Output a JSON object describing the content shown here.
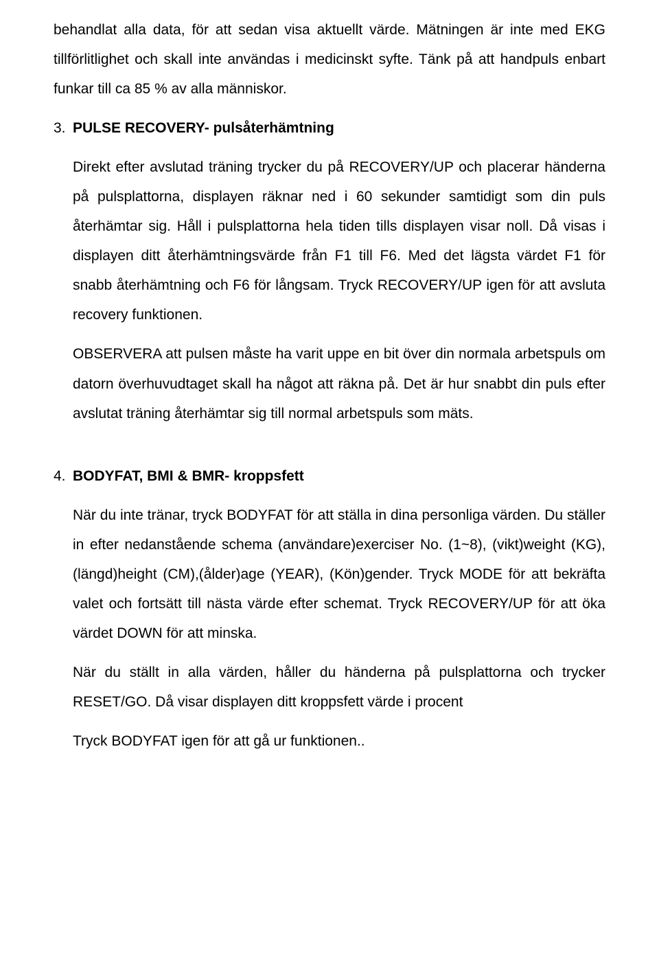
{
  "para_top": "behandlat alla data, för att sedan visa aktuellt värde. Mätningen är inte med EKG tillförlitlighet och skall inte användas i medicinskt syfte. Tänk på att handpuls enbart funkar till ca 85 % av alla människor.",
  "sec3_num": "3.",
  "sec3_title": "PULSE RECOVERY- pulsåterhämtning",
  "sec3_p1": "Direkt efter avslutad träning trycker du på RECOVERY/UP och placerar händerna på pulsplattorna, displayen räknar ned i 60 sekunder samtidigt som din puls återhämtar sig. Håll i pulsplattorna hela tiden tills displayen visar noll. Då visas i displayen ditt återhämtningsvärde från F1 till F6. Med det lägsta värdet F1 för snabb återhämtning och F6 för långsam.   Tryck RECOVERY/UP igen för att avsluta recovery funktionen.",
  "sec3_p2": "OBSERVERA att pulsen måste ha varit uppe en bit över din normala arbetspuls om datorn överhuvudtaget skall ha något att räkna på. Det är hur snabbt din puls efter avslutat träning återhämtar sig till normal arbetspuls som mäts.",
  "sec4_num": "4.",
  "sec4_title": "BODYFAT, BMI & BMR- kroppsfett",
  "sec4_p1": "När du inte tränar, tryck BODYFAT för att ställa in dina personliga värden. Du ställer in efter nedanstående schema (användare)exerciser No. (1~8), (vikt)weight (KG), (längd)height (CM),(ålder)age (YEAR), (Kön)gender. Tryck MODE för att bekräfta valet och fortsätt till nästa värde efter schemat. Tryck RECOVERY/UP för att öka värdet DOWN för att minska.",
  "sec4_p2": "När du ställt in alla värden, håller du händerna på pulsplattorna och trycker RESET/GO. Då visar displayen ditt kroppsfett värde i procent",
  "sec4_p3": "Tryck BODYFAT igen för att gå ur funktionen.."
}
